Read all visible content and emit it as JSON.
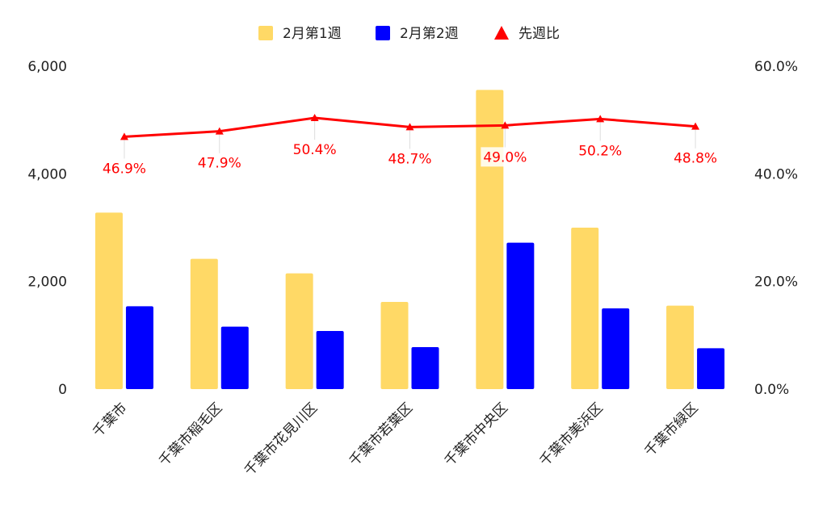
{
  "chart_data": {
    "type": "bar",
    "categories": [
      "千葉市",
      "千葉市稲毛区",
      "千葉市花見川区",
      "千葉市若葉区",
      "千葉市中央区",
      "千葉市美浜区",
      "千葉市緑区"
    ],
    "series": [
      {
        "name": "2月第1週",
        "type": "bar",
        "axis": "left",
        "color": "#ffd966",
        "values": [
          3280,
          2420,
          2150,
          1620,
          5560,
          3000,
          1550
        ]
      },
      {
        "name": "2月第2週",
        "type": "bar",
        "axis": "left",
        "color": "#0000ff",
        "values": [
          1540,
          1160,
          1080,
          780,
          2720,
          1500,
          760
        ]
      },
      {
        "name": "先週比",
        "type": "line",
        "axis": "right",
        "color": "#ff0000",
        "values": [
          46.9,
          47.9,
          50.4,
          48.7,
          49.0,
          50.2,
          48.8
        ],
        "data_labels": [
          "46.9%",
          "47.9%",
          "50.4%",
          "48.7%",
          "49.0%",
          "50.2%",
          "48.8%"
        ]
      }
    ],
    "y_left": {
      "min": 0,
      "max": 6000,
      "ticks": [
        0,
        2000,
        4000,
        6000
      ],
      "tick_labels": [
        "0",
        "2,000",
        "4,000",
        "6,000"
      ]
    },
    "y_right": {
      "min": 0,
      "max": 60,
      "ticks": [
        0,
        20,
        40,
        60
      ],
      "tick_labels": [
        "0.0%",
        "20.0%",
        "40.0%",
        "60.0%"
      ]
    },
    "legend": {
      "position": "top-center",
      "entries": [
        {
          "label": "2月第1週",
          "marker": "square",
          "color": "#ffd966"
        },
        {
          "label": "2月第2週",
          "marker": "square",
          "color": "#0000ff"
        },
        {
          "label": "先週比",
          "marker": "triangle",
          "color": "#ff0000"
        }
      ]
    },
    "grid": false
  }
}
